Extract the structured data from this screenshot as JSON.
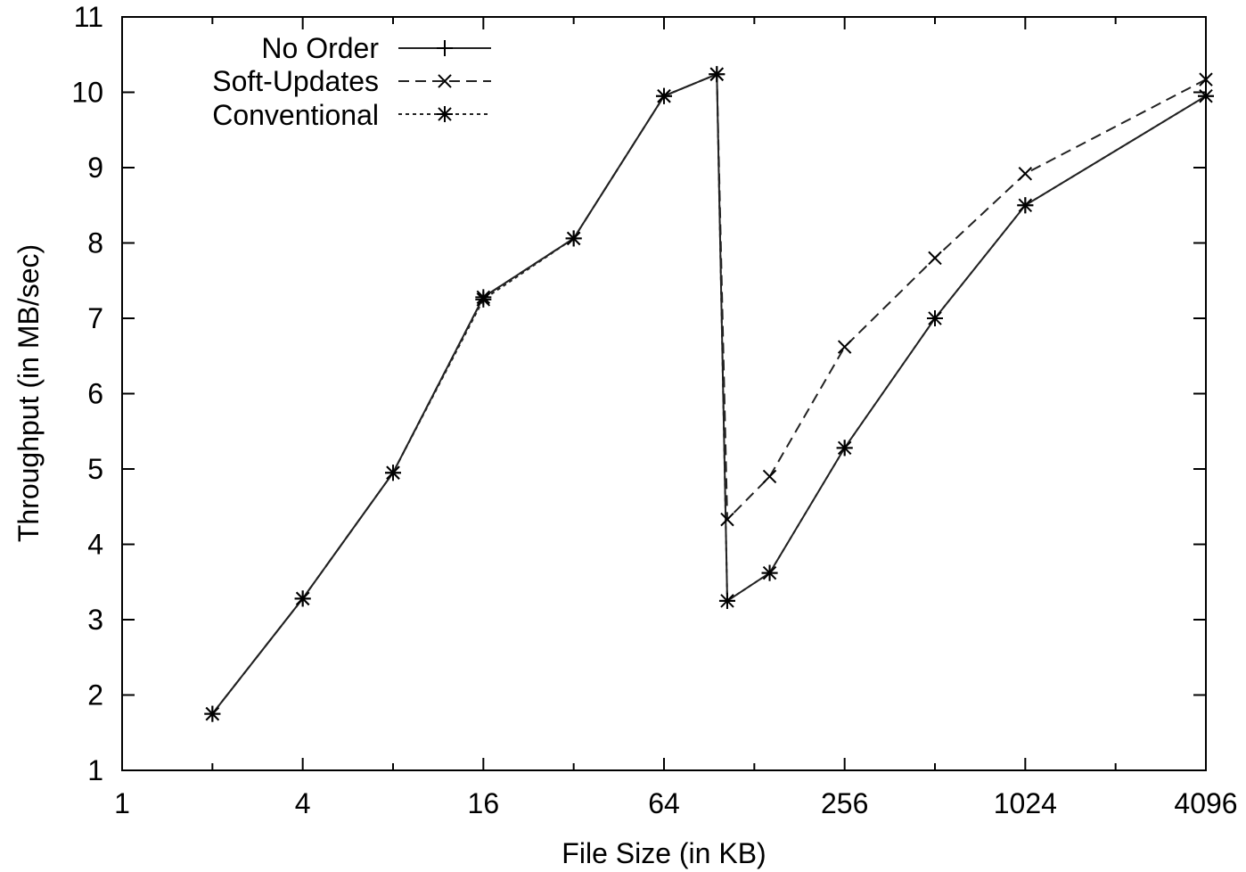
{
  "chart_data": {
    "type": "line",
    "xlabel": "File Size (in KB)",
    "ylabel": "Throughput (in MB/sec)",
    "xscale": "log2",
    "xlim": [
      1,
      4096
    ],
    "ylim": [
      1,
      11
    ],
    "x_ticks": [
      {
        "value": 1,
        "label": "1"
      },
      {
        "value": 4,
        "label": "4"
      },
      {
        "value": 16,
        "label": "16"
      },
      {
        "value": 64,
        "label": "64"
      },
      {
        "value": 256,
        "label": "256"
      },
      {
        "value": 1024,
        "label": "1024"
      },
      {
        "value": 4096,
        "label": "4096"
      }
    ],
    "x_minor_ticks": [
      2,
      8,
      32,
      128,
      512,
      2048
    ],
    "y_ticks": [
      {
        "value": 1,
        "label": "1"
      },
      {
        "value": 2,
        "label": "2"
      },
      {
        "value": 3,
        "label": "3"
      },
      {
        "value": 4,
        "label": "4"
      },
      {
        "value": 5,
        "label": "5"
      },
      {
        "value": 6,
        "label": "6"
      },
      {
        "value": 7,
        "label": "7"
      },
      {
        "value": 8,
        "label": "8"
      },
      {
        "value": 9,
        "label": "9"
      },
      {
        "value": 10,
        "label": "10"
      },
      {
        "value": 11,
        "label": "11"
      }
    ],
    "grid": false,
    "legend_position": "top-left",
    "series": [
      {
        "name": "No Order",
        "line": "solid",
        "marker": "plus",
        "x": [
          2,
          4,
          8,
          16,
          32,
          64,
          96,
          104,
          144,
          256,
          512,
          1024,
          4096
        ],
        "y": [
          1.75,
          3.28,
          4.95,
          7.28,
          8.06,
          9.95,
          10.24,
          3.25,
          3.62,
          5.28,
          7.0,
          8.5,
          9.95
        ]
      },
      {
        "name": "Soft-Updates",
        "line": "dashed",
        "marker": "cross",
        "x": [
          2,
          4,
          8,
          16,
          32,
          64,
          96,
          104,
          144,
          256,
          512,
          1024,
          4096
        ],
        "y": [
          1.75,
          3.28,
          4.95,
          7.28,
          8.06,
          9.95,
          10.24,
          4.33,
          4.9,
          6.62,
          7.8,
          8.92,
          10.17
        ]
      },
      {
        "name": "Conventional",
        "line": "dotted",
        "marker": "star",
        "x": [
          2,
          4,
          8,
          16,
          32,
          64,
          96,
          104,
          144,
          256,
          512,
          1024,
          4096
        ],
        "y": [
          1.75,
          3.28,
          4.95,
          7.25,
          8.06,
          9.95,
          10.24,
          3.25,
          3.62,
          5.28,
          7.0,
          8.5,
          9.95
        ]
      }
    ]
  }
}
